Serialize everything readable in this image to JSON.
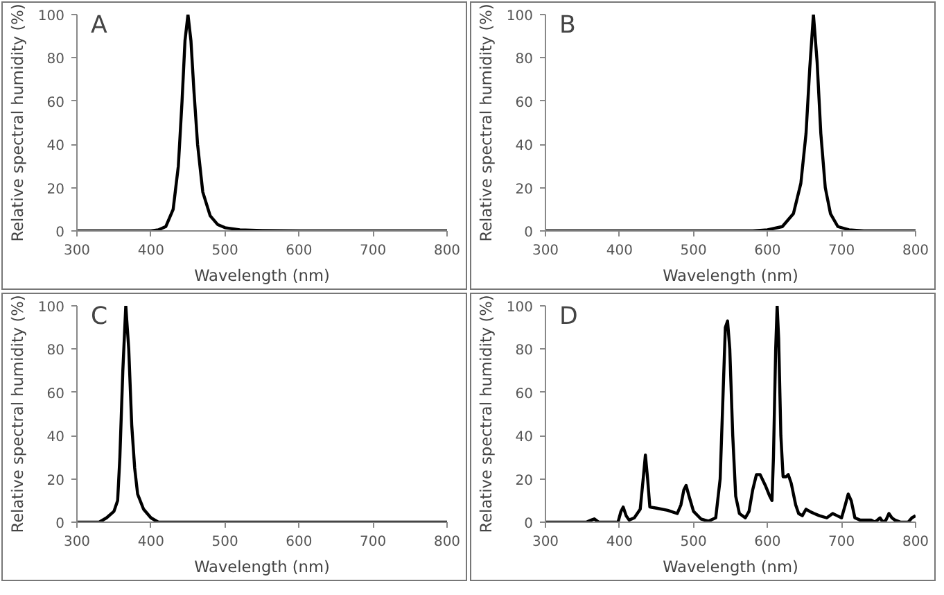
{
  "chart_data": [
    {
      "type": "line",
      "title": "A",
      "xlabel": "Wavelength (nm)",
      "ylabel": "Relative spectral humidity (%)",
      "xlim": [
        300,
        800
      ],
      "ylim": [
        0,
        100
      ],
      "xticks": [
        300,
        400,
        500,
        600,
        700,
        800
      ],
      "yticks": [
        0,
        20,
        40,
        60,
        80,
        100
      ],
      "grid": false,
      "marker": "none",
      "line_style": "solid",
      "series": [
        {
          "color": "#000000",
          "x": [
            300,
            400,
            410,
            420,
            430,
            437,
            442,
            446,
            450,
            454,
            458,
            463,
            470,
            480,
            490,
            500,
            520,
            550,
            600,
            800
          ],
          "values": [
            0,
            0,
            0.5,
            2,
            10,
            30,
            60,
            88,
            100,
            88,
            65,
            40,
            18,
            7,
            3,
            1.5,
            0.5,
            0.2,
            0,
            0
          ]
        }
      ]
    },
    {
      "type": "line",
      "title": "B",
      "xlabel": "Wavelength (nm)",
      "ylabel": "Relative spectral humidity (%)",
      "xlim": [
        300,
        800
      ],
      "ylim": [
        0,
        100
      ],
      "xticks": [
        300,
        400,
        500,
        600,
        700,
        800
      ],
      "yticks": [
        0,
        20,
        40,
        60,
        80,
        100
      ],
      "grid": false,
      "marker": "none",
      "line_style": "solid",
      "series": [
        {
          "color": "#000000",
          "x": [
            300,
            580,
            600,
            620,
            635,
            645,
            652,
            657,
            662,
            667,
            672,
            678,
            685,
            695,
            710,
            730,
            800
          ],
          "values": [
            0,
            0,
            0.5,
            2,
            8,
            22,
            45,
            75,
            100,
            78,
            45,
            20,
            8,
            2,
            0.5,
            0,
            0
          ]
        }
      ]
    },
    {
      "type": "line",
      "title": "C",
      "xlabel": "Wavelength (nm)",
      "ylabel": "Relative spectral humidity (%)",
      "xlim": [
        300,
        800
      ],
      "ylim": [
        0,
        100
      ],
      "xticks": [
        300,
        400,
        500,
        600,
        700,
        800
      ],
      "yticks": [
        0,
        20,
        40,
        60,
        80,
        100
      ],
      "grid": false,
      "marker": "none",
      "line_style": "solid",
      "series": [
        {
          "color": "#000000",
          "x": [
            300,
            330,
            340,
            350,
            355,
            358,
            362,
            366,
            370,
            374,
            378,
            382,
            390,
            400,
            410,
            800
          ],
          "values": [
            0,
            0,
            2,
            5,
            10,
            30,
            70,
            100,
            80,
            45,
            25,
            13,
            6,
            2,
            0,
            0
          ]
        }
      ]
    },
    {
      "type": "line",
      "title": "D",
      "xlabel": "Wavelength (nm)",
      "ylabel": "Relative spectral humidity (%)",
      "xlim": [
        300,
        800
      ],
      "ylim": [
        0,
        100
      ],
      "xticks": [
        300,
        400,
        500,
        600,
        700,
        800
      ],
      "yticks": [
        0,
        20,
        40,
        60,
        80,
        100
      ],
      "grid": false,
      "marker": "none",
      "line_style": "solid",
      "series": [
        {
          "color": "#000000",
          "x": [
            300,
            355,
            362,
            366,
            372,
            398,
            402,
            405,
            409,
            413,
            420,
            428,
            432,
            435,
            438,
            441,
            450,
            465,
            478,
            483,
            487,
            490,
            494,
            500,
            510,
            520,
            530,
            536,
            540,
            543,
            546,
            549,
            553,
            557,
            562,
            570,
            575,
            580,
            585,
            590,
            597,
            603,
            606,
            608,
            611,
            613,
            615,
            618,
            621,
            625,
            628,
            632,
            638,
            642,
            647,
            652,
            657,
            663,
            670,
            680,
            688,
            694,
            700,
            705,
            709,
            713,
            718,
            725,
            740,
            745,
            752,
            756,
            760,
            764,
            768,
            772,
            780,
            790,
            795,
            800
          ],
          "values": [
            0,
            0,
            1,
            1.5,
            0,
            0,
            5,
            7,
            3,
            1,
            2,
            6,
            20,
            31,
            20,
            7,
            6.5,
            5.5,
            4,
            8,
            15,
            17,
            12,
            5,
            1.5,
            0.5,
            2,
            20,
            60,
            90,
            93,
            80,
            40,
            12,
            4,
            2,
            5,
            15,
            22,
            22,
            17,
            12,
            10,
            30,
            80,
            100,
            85,
            40,
            21,
            21,
            22,
            18,
            8,
            4,
            3,
            6,
            5,
            4,
            3,
            2,
            4,
            3,
            2,
            8,
            13,
            10,
            2,
            1,
            1,
            0,
            2,
            0,
            1,
            4,
            2,
            1,
            0,
            0,
            2,
            3
          ]
        }
      ]
    }
  ]
}
